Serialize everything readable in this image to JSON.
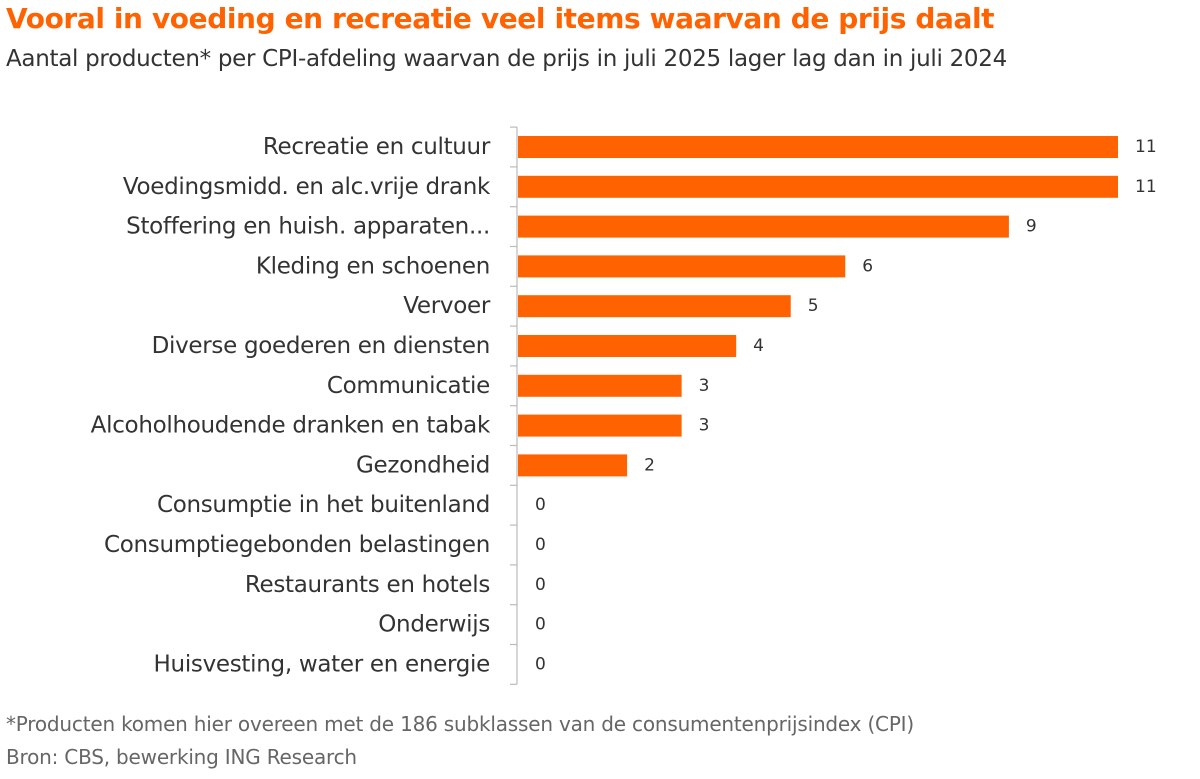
{
  "title": "Vooral in voeding en recreatie veel items waarvan de prijs daalt",
  "subtitle": "Aantal producten* per CPI-afdeling waarvan de prijs in juli 2025 lager lag dan in juli 2024",
  "footnote": "*Producten komen hier overeen met de 186 subklassen van de consumentenprijsindex (CPI)",
  "source": "Bron: CBS, bewerking ING Research",
  "colors": {
    "bar": "#ff6200",
    "title": "#ff6200",
    "axis": "#bbbbbb",
    "label": "#333333"
  },
  "chart_data": {
    "type": "bar",
    "orientation": "horizontal",
    "title": "Vooral in voeding en recreatie veel items waarvan de prijs daalt",
    "subtitle": "Aantal producten* per CPI-afdeling waarvan de prijs in juli 2025 lager lag dan in juli 2024",
    "xlabel": "",
    "ylabel": "",
    "grid": false,
    "legend": "none",
    "xlim": [
      0,
      11
    ],
    "categories": [
      "Recreatie en cultuur",
      "Voedingsmidd. en alc.vrije drank",
      "Stoffering en huish. apparaten...",
      "Kleding en schoenen",
      "Vervoer",
      "Diverse goederen en diensten",
      "Communicatie",
      "Alcoholhoudende dranken en tabak",
      "Gezondheid",
      "Consumptie in het buitenland",
      "Consumptiegebonden belastingen",
      "Restaurants en hotels",
      "Onderwijs",
      "Huisvesting, water en energie"
    ],
    "values": [
      11,
      11,
      9,
      6,
      5,
      4,
      3,
      3,
      2,
      0,
      0,
      0,
      0,
      0
    ]
  }
}
